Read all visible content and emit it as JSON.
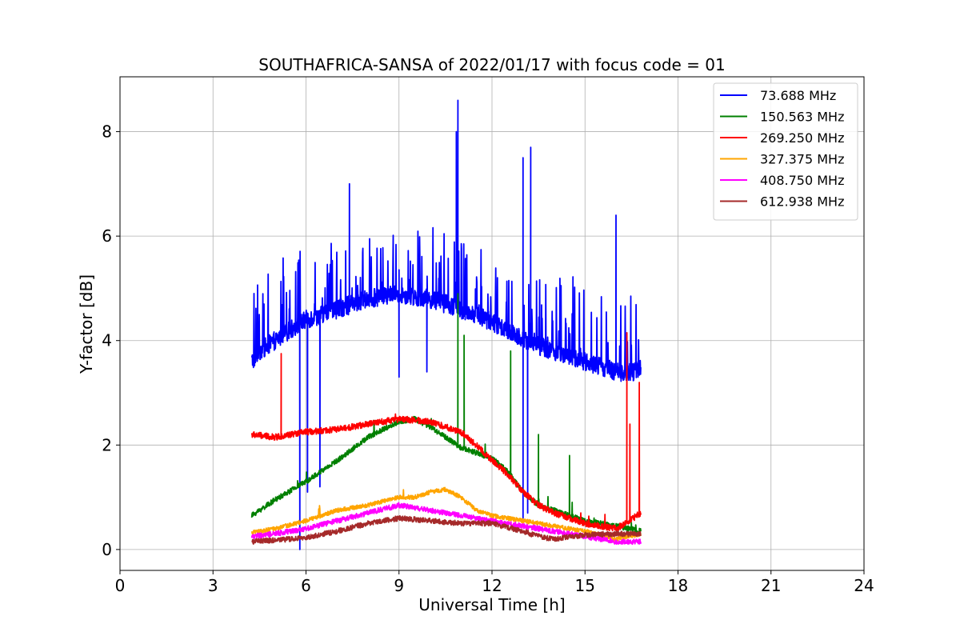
{
  "chart_data": {
    "type": "line",
    "title": "SOUTHAFRICA-SANSA of 2022/01/17 with focus code = 01",
    "xlabel": "Universal Time [h]",
    "ylabel": "Y-factor [dB]",
    "xlim": [
      0,
      24
    ],
    "ylim": [
      -0.4,
      9.05
    ],
    "xticks": [
      0,
      3,
      6,
      9,
      12,
      15,
      18,
      21,
      24
    ],
    "yticks": [
      0,
      2,
      4,
      6,
      8
    ],
    "grid": true,
    "legend_position": "top-right",
    "series": [
      {
        "name": "  73.688 MHz",
        "color": "#0000ff",
        "x": [
          4.25,
          4.5,
          5,
          5.5,
          6,
          6.5,
          7,
          7.5,
          8,
          8.5,
          9,
          9.5,
          10,
          10.5,
          11,
          11.5,
          12,
          12.5,
          13,
          13.5,
          14,
          14.5,
          15,
          15.5,
          16,
          16.5,
          16.8
        ],
        "y": [
          3.6,
          3.8,
          4.0,
          4.2,
          4.4,
          4.5,
          4.6,
          4.7,
          4.8,
          4.85,
          4.9,
          4.85,
          4.8,
          4.7,
          4.6,
          4.5,
          4.35,
          4.2,
          4.05,
          3.9,
          3.8,
          3.7,
          3.6,
          3.5,
          3.4,
          3.4,
          3.45
        ],
        "noise": 0.18,
        "spike_prob": 0.12,
        "spike_amp": 1.4,
        "spikes": [
          [
            10.9,
            8.6
          ],
          [
            10.85,
            8.0
          ],
          [
            13.0,
            7.5
          ],
          [
            13.25,
            7.7
          ],
          [
            16.0,
            6.4
          ],
          [
            7.4,
            7.0
          ]
        ],
        "dips": [
          [
            5.8,
            0.0
          ],
          [
            6.05,
            1.1
          ],
          [
            6.45,
            1.2
          ],
          [
            9.0,
            3.3
          ],
          [
            9.9,
            3.4
          ],
          [
            13.0,
            0.6
          ],
          [
            13.15,
            0.7
          ]
        ]
      },
      {
        "name": "150.563 MHz",
        "color": "#008000",
        "x": [
          4.25,
          5,
          6,
          7,
          8,
          9,
          9.5,
          10,
          11,
          12,
          12.5,
          13,
          13.5,
          14,
          15,
          16,
          16.8
        ],
        "y": [
          0.65,
          0.95,
          1.3,
          1.7,
          2.15,
          2.45,
          2.5,
          2.35,
          1.95,
          1.75,
          1.5,
          1.1,
          0.85,
          0.75,
          0.55,
          0.45,
          0.35
        ],
        "noise": 0.05,
        "spike_prob": 0.01,
        "spike_amp": 0.3,
        "spikes": [
          [
            10.9,
            4.9
          ],
          [
            11.1,
            4.1
          ],
          [
            12.6,
            3.8
          ],
          [
            13.5,
            2.2
          ],
          [
            14.5,
            1.8
          ]
        ],
        "dips": []
      },
      {
        "name": "269.250 MHz",
        "color": "#ff0000",
        "x": [
          4.25,
          5,
          6,
          7,
          8,
          9,
          10,
          11,
          11.5,
          12,
          12.5,
          13,
          13.5,
          14,
          15,
          16,
          16.3,
          16.8
        ],
        "y": [
          2.2,
          2.15,
          2.25,
          2.3,
          2.4,
          2.5,
          2.45,
          2.25,
          2.0,
          1.7,
          1.45,
          1.1,
          0.85,
          0.7,
          0.5,
          0.4,
          0.5,
          0.7
        ],
        "noise": 0.06,
        "spike_prob": 0.003,
        "spike_amp": 0.3,
        "spikes": [
          [
            5.2,
            3.75
          ],
          [
            16.35,
            4.15
          ],
          [
            16.45,
            2.4
          ],
          [
            16.75,
            3.2
          ]
        ],
        "dips": []
      },
      {
        "name": "327.375 MHz",
        "color": "#ffa500",
        "x": [
          4.25,
          5,
          6,
          7,
          8,
          9,
          9.5,
          10,
          10.5,
          11,
          11.5,
          12,
          13,
          14,
          15,
          16,
          16.8
        ],
        "y": [
          0.32,
          0.4,
          0.55,
          0.75,
          0.85,
          1.0,
          1.0,
          1.1,
          1.15,
          1.0,
          0.75,
          0.65,
          0.55,
          0.45,
          0.35,
          0.2,
          0.3
        ],
        "noise": 0.04,
        "spike_prob": 0.004,
        "spike_amp": 0.25,
        "spikes": [],
        "dips": []
      },
      {
        "name": "408.750 MHz",
        "color": "#ff00ff",
        "x": [
          4.25,
          5,
          6,
          7,
          8,
          9,
          10,
          11,
          12,
          13,
          14,
          15,
          16,
          16.8
        ],
        "y": [
          0.25,
          0.3,
          0.4,
          0.55,
          0.7,
          0.85,
          0.75,
          0.65,
          0.55,
          0.45,
          0.35,
          0.25,
          0.15,
          0.15
        ],
        "noise": 0.05,
        "spike_prob": 0.002,
        "spike_amp": 0.15,
        "spikes": [],
        "dips": []
      },
      {
        "name": "612.938 MHz",
        "color": "#a52a2a",
        "x": [
          4.25,
          5,
          6,
          7,
          8,
          9,
          10,
          11,
          12,
          13,
          13.5,
          14,
          15,
          16,
          16.8
        ],
        "y": [
          0.15,
          0.18,
          0.22,
          0.35,
          0.5,
          0.6,
          0.55,
          0.5,
          0.5,
          0.35,
          0.25,
          0.2,
          0.28,
          0.3,
          0.3
        ],
        "noise": 0.05,
        "spike_prob": 0.0,
        "spike_amp": 0.0,
        "spikes": [],
        "dips": []
      }
    ]
  }
}
